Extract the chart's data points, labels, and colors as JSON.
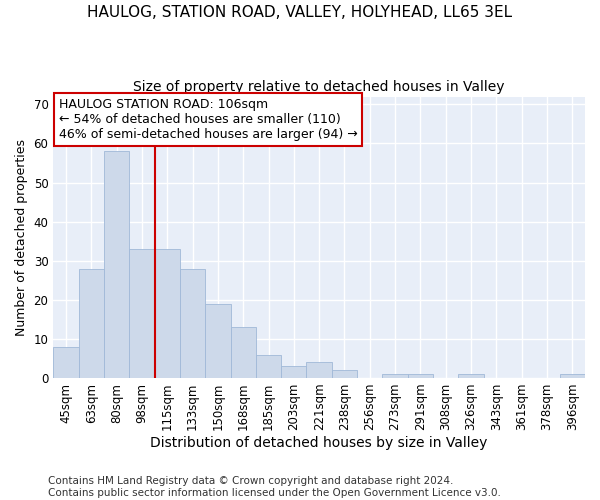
{
  "title1": "HAULOG, STATION ROAD, VALLEY, HOLYHEAD, LL65 3EL",
  "title2": "Size of property relative to detached houses in Valley",
  "xlabel": "Distribution of detached houses by size in Valley",
  "ylabel": "Number of detached properties",
  "categories": [
    "45sqm",
    "63sqm",
    "80sqm",
    "98sqm",
    "115sqm",
    "133sqm",
    "150sqm",
    "168sqm",
    "185sqm",
    "203sqm",
    "221sqm",
    "238sqm",
    "256sqm",
    "273sqm",
    "291sqm",
    "308sqm",
    "326sqm",
    "343sqm",
    "361sqm",
    "378sqm",
    "396sqm"
  ],
  "values": [
    8,
    28,
    58,
    33,
    33,
    28,
    19,
    13,
    6,
    3,
    4,
    2,
    0,
    1,
    1,
    0,
    1,
    0,
    0,
    0,
    1
  ],
  "bar_color": "#cdd9ea",
  "bar_edge_color": "#a0b8d8",
  "vline_x": 3.5,
  "vline_color": "#cc0000",
  "annotation_text": "HAULOG STATION ROAD: 106sqm\n← 54% of detached houses are smaller (110)\n46% of semi-detached houses are larger (94) →",
  "annotation_box_color": "#ffffff",
  "annotation_box_edge": "#cc0000",
  "ylim": [
    0,
    72
  ],
  "yticks": [
    0,
    10,
    20,
    30,
    40,
    50,
    60,
    70
  ],
  "footer": "Contains HM Land Registry data © Crown copyright and database right 2024.\nContains public sector information licensed under the Open Government Licence v3.0.",
  "bg_color": "#e8eef8",
  "grid_color": "#ffffff",
  "title1_fontsize": 11,
  "title2_fontsize": 10,
  "xlabel_fontsize": 10,
  "ylabel_fontsize": 9,
  "tick_fontsize": 8.5,
  "ann_fontsize": 9,
  "footer_fontsize": 7.5
}
